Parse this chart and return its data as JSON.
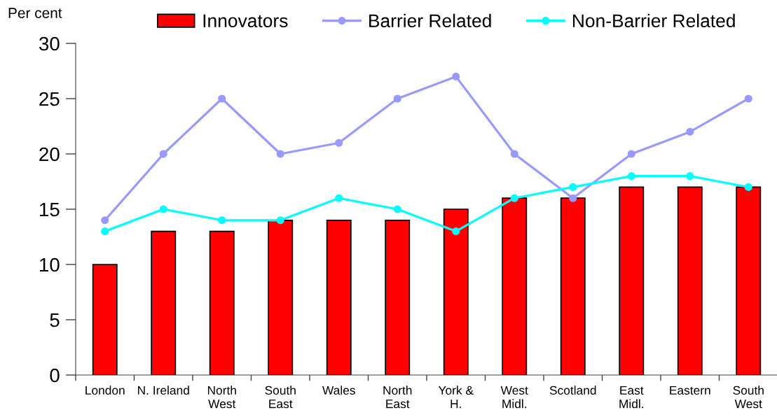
{
  "chart_data": {
    "type": "bar",
    "ylabel": "Per cent",
    "categories": [
      "London",
      "N. Ireland",
      "North\nWest",
      "South\nEast",
      "Wales",
      "North\nEast",
      "York &\nH.",
      "West\nMidl.",
      "Scotland",
      "East\nMidl.",
      "Eastern",
      "South\nWest"
    ],
    "series": [
      {
        "name": "Innovators",
        "color": "#ff0000",
        "values": [
          10,
          13,
          13,
          14,
          14,
          14,
          15,
          16,
          16,
          17,
          17,
          17
        ]
      },
      {
        "name": "Barrier Related",
        "type": "line",
        "color": "#9999ff",
        "marker": "circle",
        "line_style": "solid",
        "values": [
          14,
          20,
          25,
          20,
          21,
          25,
          27,
          20,
          16,
          20,
          22,
          25
        ]
      },
      {
        "name": "Non-Barrier Related",
        "type": "line",
        "color": "#00ffff",
        "marker": "circle",
        "line_style": "solid",
        "values": [
          13,
          15,
          14,
          14,
          16,
          15,
          13,
          16,
          17,
          18,
          18,
          17
        ]
      }
    ],
    "ylim": [
      0,
      30
    ],
    "yticks": [
      0,
      5,
      10,
      15,
      20,
      25,
      30
    ],
    "grid": false,
    "legend": "top"
  }
}
